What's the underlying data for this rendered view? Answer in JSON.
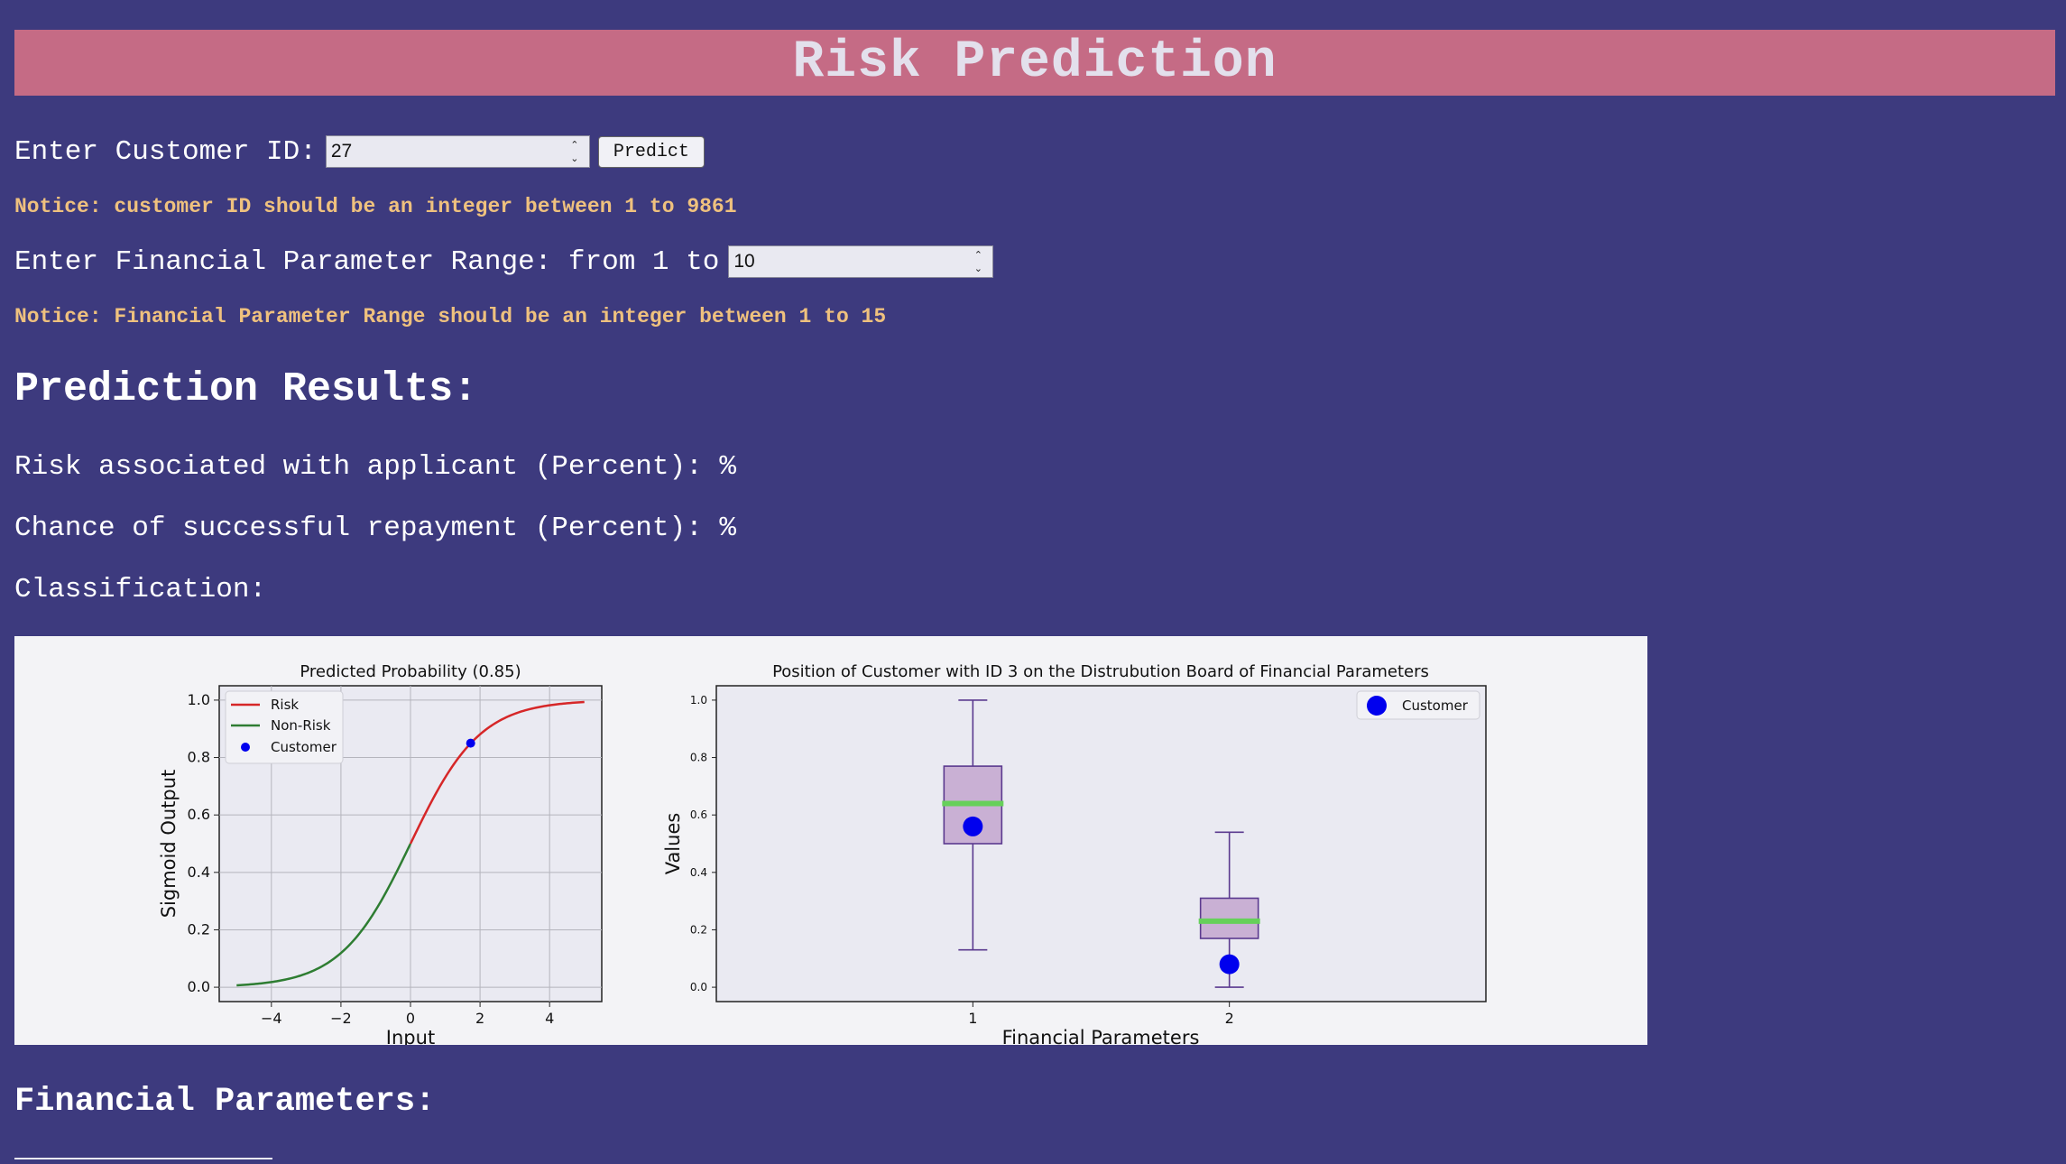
{
  "header": {
    "title": "Risk Prediction"
  },
  "customer_form": {
    "label": "Enter Customer ID:",
    "value": "27",
    "button_label": "Predict",
    "notice": "Notice: customer ID should be an integer between 1 to 9861"
  },
  "range_form": {
    "label": "Enter Financial Parameter Range: from 1 to",
    "value": "10",
    "notice": "Notice: Financial Parameter Range should be an integer between 1 to 15"
  },
  "results": {
    "heading": "Prediction Results:",
    "risk_line": "Risk associated with applicant (Percent): %",
    "repay_line": "Chance of successful repayment (Percent): %",
    "classification_line": "Classification:"
  },
  "financial": {
    "heading": "Financial Parameters:"
  },
  "colors": {
    "background": "#3d3a7e",
    "banner": "#c56b85",
    "notice": "#efc17e",
    "risk_line": "#d62728",
    "nonrisk_line": "#2e7d32",
    "customer_point": "#0000ee",
    "box_fill": "#c9b0d4",
    "box_edge": "#5b3a8f",
    "median": "#66d05a"
  },
  "chart_data": [
    {
      "type": "line",
      "title": "Predicted Probability (0.85)",
      "xlabel": "Input",
      "ylabel": "Sigmoid Output",
      "xlim": [
        -5.5,
        5.5
      ],
      "ylim": [
        -0.05,
        1.05
      ],
      "xticks": [
        "−4",
        "−2",
        "0",
        "2",
        "4"
      ],
      "xtick_values": [
        -4,
        -2,
        0,
        2,
        4
      ],
      "yticks": [
        "0.0",
        "0.2",
        "0.4",
        "0.6",
        "0.8",
        "1.0"
      ],
      "ytick_values": [
        0,
        0.2,
        0.4,
        0.6,
        0.8,
        1.0
      ],
      "grid": true,
      "legend_position": "upper-left",
      "series": [
        {
          "name": "Risk",
          "function": "sigmoid",
          "x_range": [
            0,
            5
          ]
        },
        {
          "name": "Non-Risk",
          "function": "sigmoid",
          "x_range": [
            -5,
            0
          ]
        }
      ],
      "points": [
        {
          "name": "Customer",
          "x": 1.73,
          "y": 0.85
        }
      ],
      "legend": [
        "Risk",
        "Non-Risk",
        "Customer"
      ]
    },
    {
      "type": "box",
      "title": "Position of Customer with ID 3 on the Distrubution Board of Financial Parameters",
      "xlabel": "Financial Parameters",
      "ylabel": "Values",
      "categories": [
        "1",
        "2"
      ],
      "ylim": [
        -0.05,
        1.05
      ],
      "yticks": [
        "0.0",
        "0.2",
        "0.4",
        "0.6",
        "0.8",
        "1.0"
      ],
      "ytick_values": [
        0,
        0.2,
        0.4,
        0.6,
        0.8,
        1.0
      ],
      "grid": false,
      "legend_position": "upper-right",
      "boxes": [
        {
          "category": "1",
          "whisker_low": 0.13,
          "q1": 0.5,
          "median": 0.64,
          "q3": 0.77,
          "whisker_high": 1.0
        },
        {
          "category": "2",
          "whisker_low": 0.0,
          "q1": 0.17,
          "median": 0.23,
          "q3": 0.31,
          "whisker_high": 0.54
        }
      ],
      "points": [
        {
          "name": "Customer",
          "category": "1",
          "y": 0.56
        },
        {
          "name": "Customer",
          "category": "2",
          "y": 0.08
        }
      ],
      "legend": [
        "Customer"
      ]
    }
  ]
}
